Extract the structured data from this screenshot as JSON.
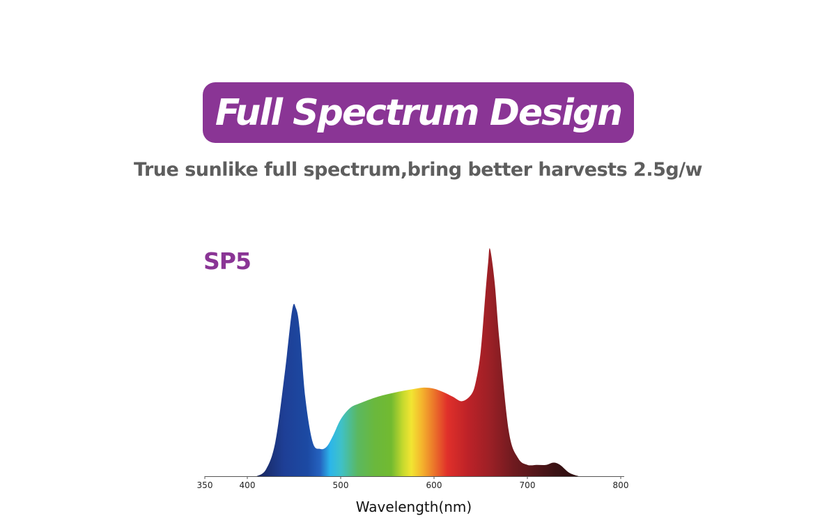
{
  "header": {
    "title": "Full Spectrum Design",
    "subtitle": "True sunlike full spectrum,bring better harvests 2.5g/w"
  },
  "colors": {
    "brand_purple": "#8a3595",
    "subtitle_gray": "#5e5e5e"
  },
  "chart_data": {
    "type": "area",
    "title": "SP5",
    "xlabel": "Wavelength(nm)",
    "ylabel": "",
    "xlim": [
      350,
      800
    ],
    "ylim": [
      0,
      1
    ],
    "xticks": [
      350,
      400,
      500,
      600,
      700,
      800
    ],
    "grid": false,
    "fill": "visible-spectrum gradient",
    "series": [
      {
        "x": [
          410,
          420,
          430,
          440,
          448,
          452,
          456,
          462,
          470,
          478,
          485,
          492,
          500,
          510,
          520,
          540,
          560,
          580,
          590,
          600,
          610,
          620,
          630,
          640,
          645,
          650,
          655,
          658,
          660,
          665,
          670,
          680,
          690,
          700,
          710,
          720,
          728,
          735,
          745,
          755
        ],
        "values": [
          0.0,
          0.03,
          0.15,
          0.45,
          0.73,
          0.74,
          0.65,
          0.35,
          0.15,
          0.12,
          0.13,
          0.18,
          0.25,
          0.3,
          0.32,
          0.35,
          0.37,
          0.385,
          0.39,
          0.385,
          0.37,
          0.35,
          0.33,
          0.36,
          0.42,
          0.55,
          0.8,
          0.94,
          1.0,
          0.85,
          0.6,
          0.2,
          0.08,
          0.05,
          0.05,
          0.05,
          0.06,
          0.05,
          0.015,
          0.0
        ]
      }
    ]
  }
}
